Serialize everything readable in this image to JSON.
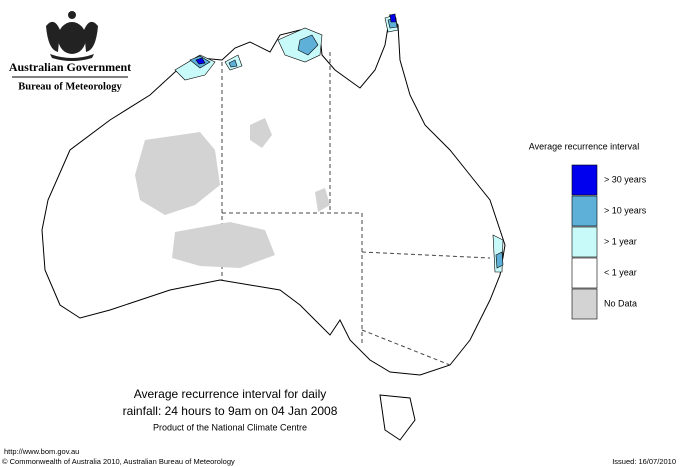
{
  "header": {
    "title": "Australian Government",
    "subtitle": "Bureau of Meteorology"
  },
  "legend": {
    "title": "Average recurrence interval",
    "items": [
      {
        "label": "> 30 years",
        "color": "#0000ee"
      },
      {
        "label": "> 10 years",
        "color": "#5fb0d8"
      },
      {
        "label": "> 1 year",
        "color": "#c8fafa"
      },
      {
        "label": "< 1 year",
        "color": "#ffffff"
      },
      {
        "label": "No Data",
        "color": "#d3d3d3"
      }
    ]
  },
  "caption": {
    "lines": [
      "Average recurrence interval for daily",
      "rainfall: 24 hours to 9am on 04 Jan 2008"
    ],
    "credit": "Product of the National Climate Centre"
  },
  "footer": {
    "url": "http://www.bom.gov.au",
    "copyright": "© Commonwealth of Australia 2010, Australian Bureau of Meteorology",
    "issued": "Issued: 16/07/2010"
  }
}
